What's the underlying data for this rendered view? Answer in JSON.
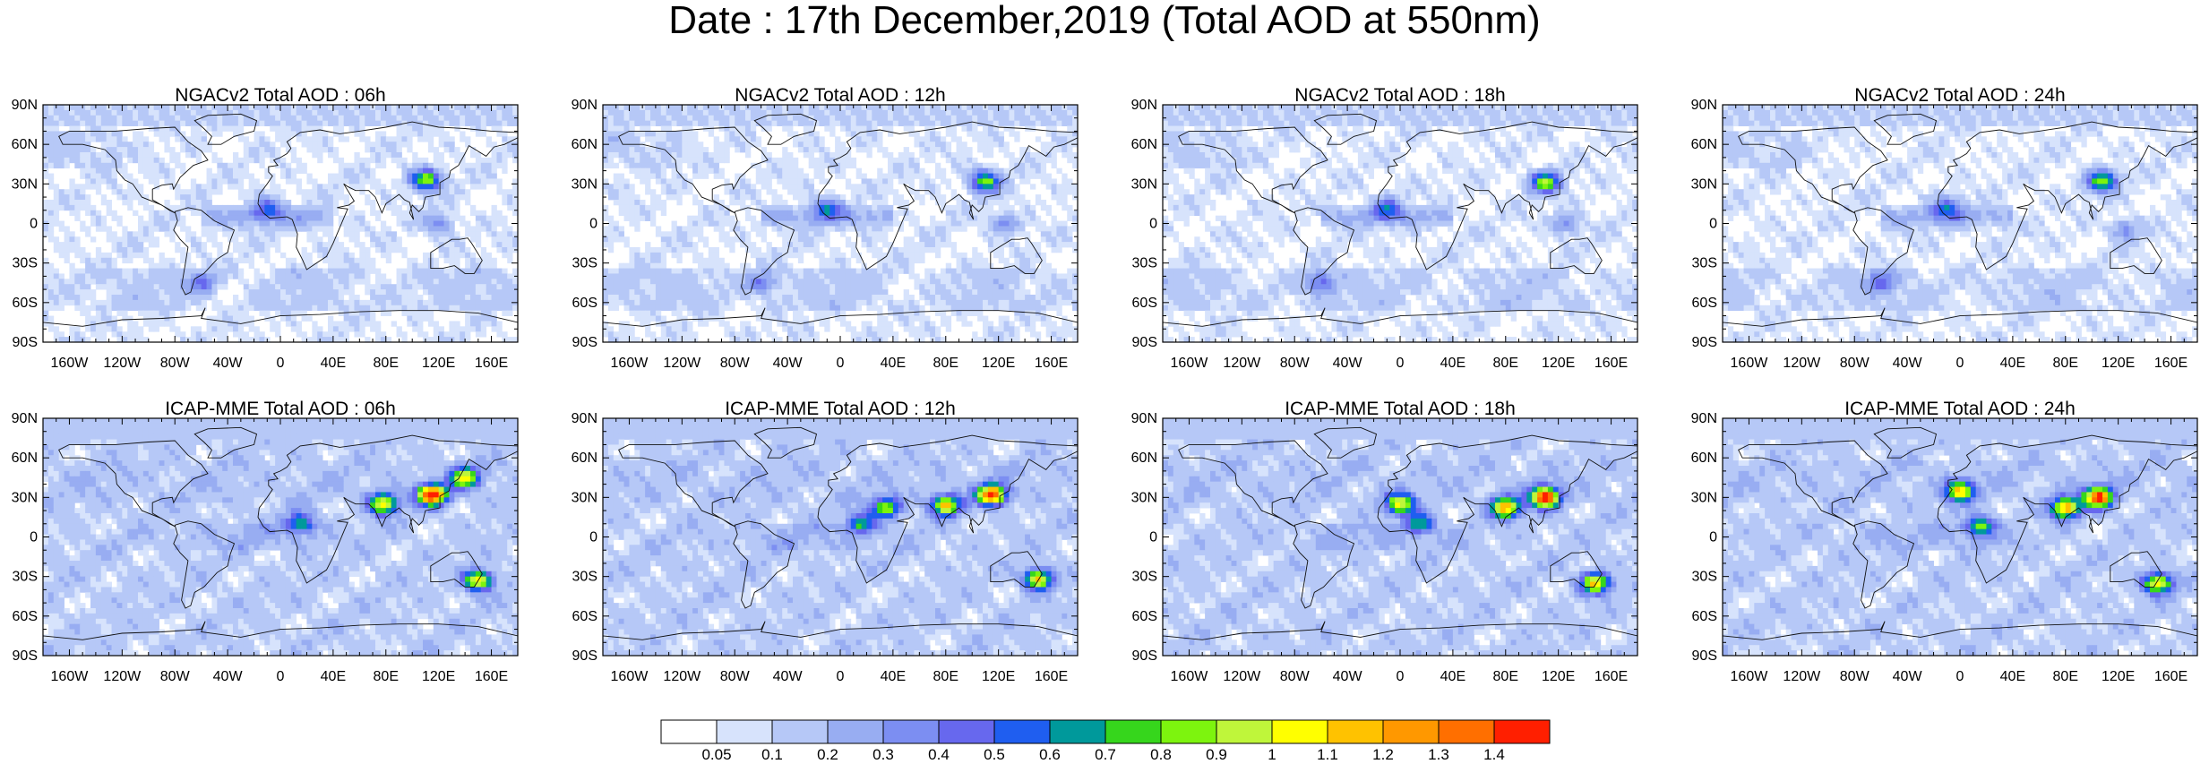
{
  "title": "Date : 17th December,2019 (Total AOD at 550nm)",
  "chart_data": [
    {
      "type": "heatmap",
      "title": "NGACv2 Total AOD : 06h",
      "model": "NGACv2",
      "forecast_hour": "06h",
      "hotspots": [
        [
          -10,
          12,
          0.45
        ],
        [
          110,
          33,
          0.85
        ],
        [
          -60,
          -45,
          0.35
        ],
        [
          120,
          0,
          0.3
        ]
      ]
    },
    {
      "type": "heatmap",
      "title": "NGACv2 Total AOD : 12h",
      "model": "NGACv2",
      "forecast_hour": "12h",
      "hotspots": [
        [
          -10,
          12,
          0.45
        ],
        [
          110,
          32,
          0.8
        ],
        [
          -60,
          -45,
          0.35
        ],
        [
          125,
          0,
          0.3
        ]
      ]
    },
    {
      "type": "heatmap",
      "title": "NGACv2 Total AOD : 18h",
      "model": "NGACv2",
      "forecast_hour": "18h",
      "hotspots": [
        [
          -10,
          12,
          0.45
        ],
        [
          110,
          31,
          0.85
        ],
        [
          -60,
          -45,
          0.35
        ],
        [
          125,
          0,
          0.3
        ]
      ]
    },
    {
      "type": "heatmap",
      "title": "NGACv2 Total AOD : 24h",
      "model": "NGACv2",
      "forecast_hour": "24h",
      "hotspots": [
        [
          -10,
          12,
          0.45
        ],
        [
          108,
          32,
          0.8
        ],
        [
          -60,
          -45,
          0.35
        ],
        [
          125,
          -5,
          0.3
        ]
      ]
    },
    {
      "type": "heatmap",
      "title": "ICAP-MME Total AOD : 06h",
      "model": "ICAP-MME",
      "forecast_hour": "06h",
      "hotspots": [
        [
          115,
          32,
          1.4
        ],
        [
          78,
          25,
          1.0
        ],
        [
          150,
          -33,
          1.0
        ],
        [
          15,
          10,
          0.6
        ],
        [
          140,
          45,
          0.9
        ]
      ]
    },
    {
      "type": "heatmap",
      "title": "ICAP-MME Total AOD : 12h",
      "model": "ICAP-MME",
      "forecast_hour": "12h",
      "hotspots": [
        [
          115,
          32,
          1.3
        ],
        [
          80,
          24,
          1.0
        ],
        [
          150,
          -32,
          1.0
        ],
        [
          35,
          22,
          0.8
        ],
        [
          15,
          10,
          0.6
        ]
      ]
    },
    {
      "type": "heatmap",
      "title": "ICAP-MME Total AOD : 18h",
      "model": "ICAP-MME",
      "forecast_hour": "18h",
      "hotspots": [
        [
          110,
          30,
          1.4
        ],
        [
          80,
          22,
          1.1
        ],
        [
          148,
          -35,
          1.0
        ],
        [
          0,
          25,
          0.9
        ],
        [
          15,
          10,
          0.6
        ]
      ]
    },
    {
      "type": "heatmap",
      "title": "ICAP-MME Total AOD : 24h",
      "model": "ICAP-MME",
      "forecast_hour": "24h",
      "hotspots": [
        [
          105,
          30,
          1.3
        ],
        [
          80,
          22,
          1.1
        ],
        [
          150,
          -35,
          1.0
        ],
        [
          0,
          35,
          1.0
        ],
        [
          15,
          8,
          0.7
        ]
      ]
    }
  ],
  "axes": {
    "lat_ticks": [
      "90N",
      "60N",
      "30N",
      "0",
      "30S",
      "60S",
      "90S"
    ],
    "lon_ticks": [
      "160W",
      "120W",
      "80W",
      "40W",
      "0",
      "40E",
      "80E",
      "120E",
      "160E"
    ],
    "xlim": [
      -180,
      180
    ],
    "ylim": [
      -90,
      90
    ]
  },
  "colorbar": {
    "labels": [
      "0.05",
      "0.1",
      "0.2",
      "0.3",
      "0.4",
      "0.5",
      "0.6",
      "0.7",
      "0.8",
      "0.9",
      "1",
      "1.1",
      "1.2",
      "1.3",
      "1.4"
    ],
    "colors": [
      "#ffffff",
      "#d7e3fc",
      "#b6c8f7",
      "#98adf2",
      "#7c8ef2",
      "#6768ee",
      "#1f5ef0",
      "#00999b",
      "#36d61c",
      "#7df40e",
      "#bff63a",
      "#ffff00",
      "#ffc200",
      "#ff9800",
      "#ff6f00",
      "#ff1f00"
    ]
  }
}
